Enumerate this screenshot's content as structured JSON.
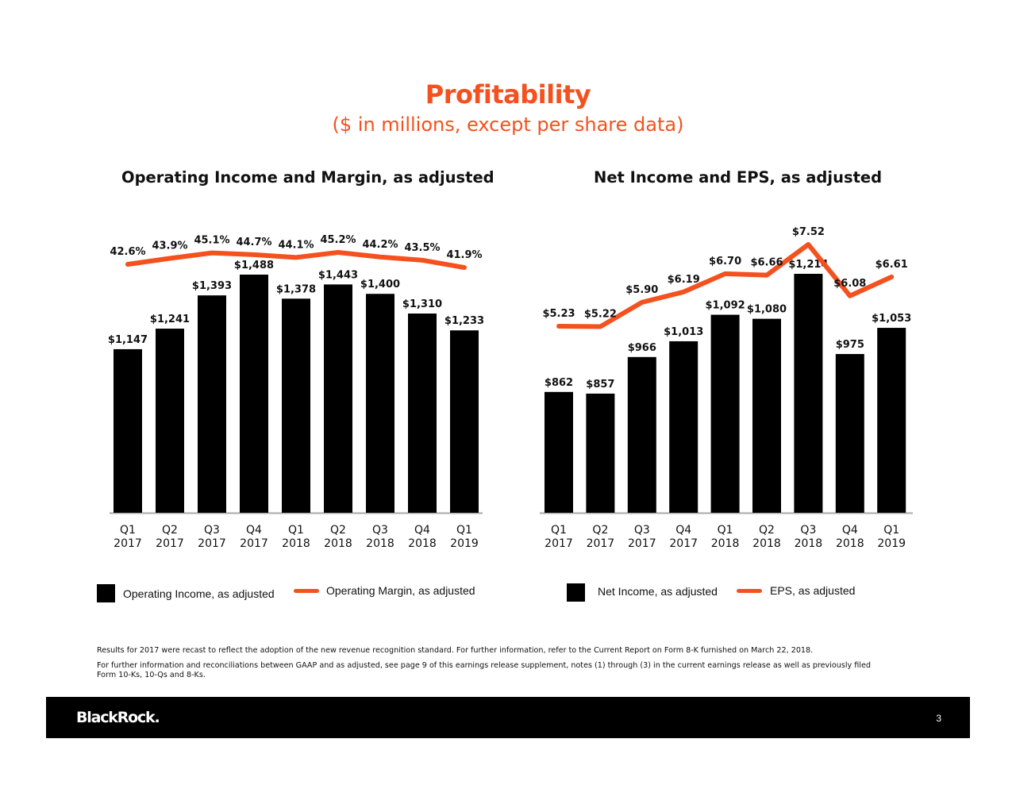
{
  "title": "Profitability",
  "subtitle": "($ in millions, except per share data)",
  "colors": {
    "accent": "#f4511e",
    "bar": "#000000"
  },
  "chart_data": [
    {
      "type": "bar+line",
      "title": "Operating Income and Margin, as adjusted",
      "categories": [
        "Q1 2017",
        "Q2 2017",
        "Q3 2017",
        "Q4 2017",
        "Q1 2018",
        "Q2 2018",
        "Q3 2018",
        "Q4 2018",
        "Q1 2019"
      ],
      "category_lines": [
        [
          "Q1",
          "2017"
        ],
        [
          "Q2",
          "2017"
        ],
        [
          "Q3",
          "2017"
        ],
        [
          "Q4",
          "2017"
        ],
        [
          "Q1",
          "2018"
        ],
        [
          "Q2",
          "2018"
        ],
        [
          "Q3",
          "2018"
        ],
        [
          "Q4",
          "2018"
        ],
        [
          "Q1",
          "2019"
        ]
      ],
      "series": [
        {
          "name": "Operating Income, as adjusted",
          "type": "bar",
          "values": [
            1147,
            1241,
            1393,
            1488,
            1378,
            1443,
            1400,
            1310,
            1233
          ],
          "labels": [
            "$1,147",
            "$1,241",
            "$1,393",
            "$1,488",
            "$1,378",
            "$1,443",
            "$1,400",
            "$1,310",
            "$1,233"
          ]
        },
        {
          "name": "Operating Margin, as adjusted",
          "type": "line",
          "values": [
            42.6,
            43.9,
            45.1,
            44.7,
            44.1,
            45.2,
            44.2,
            43.5,
            41.9
          ],
          "labels": [
            "42.6%",
            "43.9%",
            "45.1%",
            "44.7%",
            "44.1%",
            "45.2%",
            "44.2%",
            "43.5%",
            "41.9%"
          ]
        }
      ],
      "legend_position": "bottom",
      "grid": false
    },
    {
      "type": "bar+line",
      "title": "Net Income and EPS, as adjusted",
      "categories": [
        "Q1 2017",
        "Q2 2017",
        "Q3 2017",
        "Q4 2017",
        "Q1 2018",
        "Q2 2018",
        "Q3 2018",
        "Q4 2018",
        "Q1 2019"
      ],
      "category_lines": [
        [
          "Q1",
          "2017"
        ],
        [
          "Q2",
          "2017"
        ],
        [
          "Q3",
          "2017"
        ],
        [
          "Q4",
          "2017"
        ],
        [
          "Q1",
          "2018"
        ],
        [
          "Q2",
          "2018"
        ],
        [
          "Q3",
          "2018"
        ],
        [
          "Q4",
          "2018"
        ],
        [
          "Q1",
          "2019"
        ]
      ],
      "series": [
        {
          "name": "Net Income, as adjusted",
          "type": "bar",
          "values": [
            862,
            857,
            966,
            1013,
            1092,
            1080,
            1214,
            975,
            1053
          ],
          "labels": [
            "$862",
            "$857",
            "$966",
            "$1,013",
            "$1,092",
            "$1,080",
            "$1,214",
            "$975",
            "$1,053"
          ]
        },
        {
          "name": "EPS, as adjusted",
          "type": "line",
          "values": [
            5.23,
            5.22,
            5.9,
            6.19,
            6.7,
            6.66,
            7.52,
            6.08,
            6.61
          ],
          "labels": [
            "$5.23",
            "$5.22",
            "$5.90",
            "$6.19",
            "$6.70",
            "$6.66",
            "$7.52",
            "$6.08",
            "$6.61"
          ]
        }
      ],
      "legend_position": "bottom",
      "grid": false
    }
  ],
  "notes": [
    "Results for 2017 were recast to reflect the adoption of the new revenue recognition standard. For further information, refer to the Current Report on Form 8-K furnished on March 22, 2018.",
    "For further information and reconciliations between GAAP and as adjusted, see page 9 of this earnings release supplement, notes (1) through (3) in the current earnings release as well as previously filed Form 10-Ks, 10-Qs and 8-Ks."
  ],
  "footer": {
    "logo": "BlackRock.",
    "page_number": "3"
  }
}
